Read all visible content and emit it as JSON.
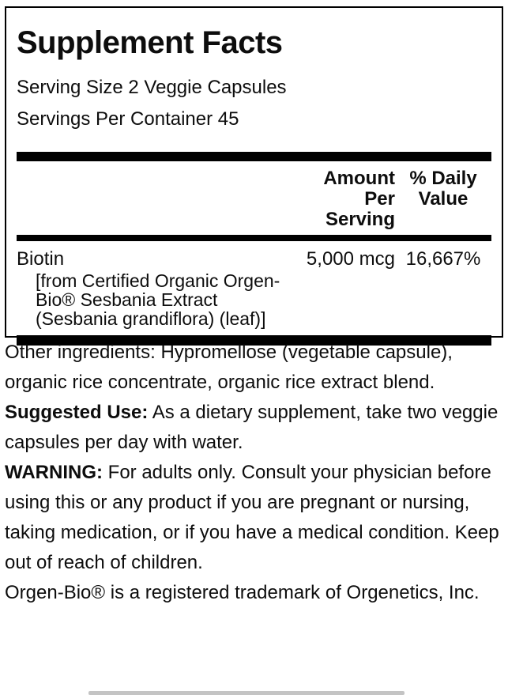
{
  "label": {
    "title": "Supplement Facts",
    "serving_size": "Serving Size 2 Veggie Capsules",
    "servings_per_container": "Servings Per Container 45",
    "table": {
      "col_amount": [
        "Amount",
        "Per Serving"
      ],
      "col_dv": [
        "% Daily",
        "Value"
      ],
      "rows": [
        {
          "name": "Biotin",
          "amount": "5,000 mcg",
          "daily_value": "16,667%",
          "details": [
            "[from Certified Organic Orgen-",
            "Bio® Sesbania Extract",
            "(Sesbania grandiflora) (leaf)]"
          ]
        }
      ]
    }
  },
  "sections": {
    "other_ingredients": "Other ingredients: Hypromellose (vegetable capsule), organic rice concentrate, organic rice extract blend.",
    "suggested_use_label": "Suggested Use:",
    "suggested_use_text": "As a dietary supplement, take two veggie capsules per day with water.",
    "warning_label": "WARNING:",
    "warning_text": "For adults only. Consult your physician before using this or any product if you are pregnant or nursing, taking medication, or if you have a medical condition. Keep out of reach of children.",
    "trademark": "Orgen-Bio® is a registered trademark of Orgenetics, Inc."
  },
  "colors": {
    "background": "#ffffff",
    "text": "#0d0d0d",
    "bar": "#000000",
    "border": "#000000"
  }
}
